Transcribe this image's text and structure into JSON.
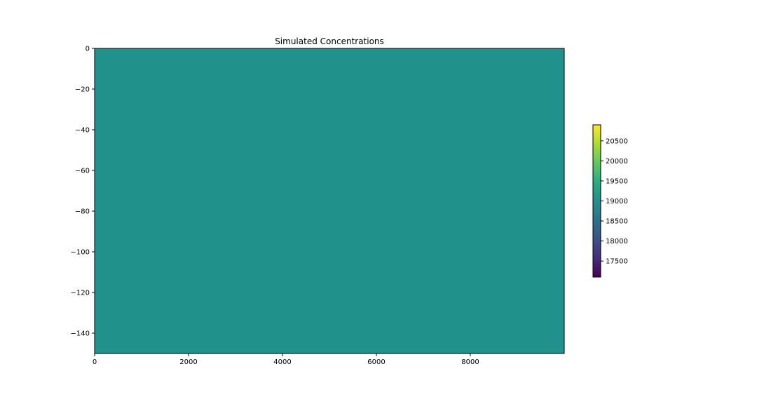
{
  "chart_data": {
    "type": "heatmap",
    "title": "Simulated Concentrations",
    "xlabel": "",
    "ylabel": "",
    "xlim": [
      0,
      10000
    ],
    "ylim": [
      -150,
      0
    ],
    "xticks": [
      0,
      2000,
      4000,
      6000,
      8000
    ],
    "yticks": [
      0,
      -20,
      -40,
      -60,
      -80,
      -100,
      -120,
      -140
    ],
    "values": [
      [
        19000
      ]
    ],
    "fill_color": "#21918c",
    "colormap": "viridis",
    "colorbar": {
      "min": 17100,
      "max": 20900,
      "ticks": [
        17500,
        18000,
        18500,
        19000,
        19500,
        20000,
        20500
      ]
    },
    "grid": false
  }
}
